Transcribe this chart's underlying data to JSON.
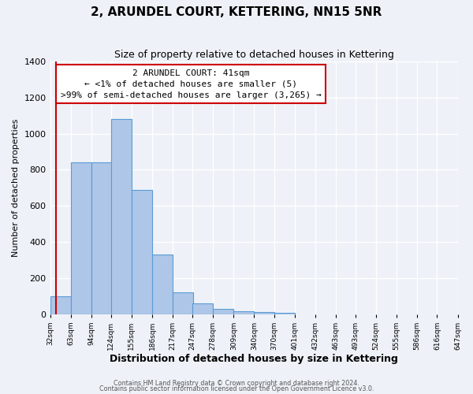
{
  "title": "2, ARUNDEL COURT, KETTERING, NN15 5NR",
  "subtitle": "Size of property relative to detached houses in Kettering",
  "xlabel": "Distribution of detached houses by size in Kettering",
  "ylabel": "Number of detached properties",
  "bar_values": [
    100,
    840,
    840,
    1080,
    690,
    330,
    120,
    60,
    28,
    15,
    10,
    8
  ],
  "bin_edges": [
    32,
    63,
    94,
    124,
    155,
    186,
    217,
    247,
    278,
    309,
    340,
    370,
    401
  ],
  "tick_labels": [
    "32sqm",
    "63sqm",
    "94sqm",
    "124sqm",
    "155sqm",
    "186sqm",
    "217sqm",
    "247sqm",
    "278sqm",
    "309sqm",
    "340sqm",
    "370sqm",
    "401sqm",
    "432sqm",
    "463sqm",
    "493sqm",
    "524sqm",
    "555sqm",
    "586sqm",
    "616sqm",
    "647sqm"
  ],
  "all_bin_edges": [
    32,
    63,
    94,
    124,
    155,
    186,
    217,
    247,
    278,
    309,
    340,
    370,
    401,
    432,
    463,
    493,
    524,
    555,
    586,
    616,
    647
  ],
  "bar_color": "#aec6e8",
  "bar_edge_color": "#5b9bd5",
  "highlight_x": 41,
  "ylim": [
    0,
    1400
  ],
  "yticks": [
    0,
    200,
    400,
    600,
    800,
    1000,
    1200,
    1400
  ],
  "annotation_line1": "2 ARUNDEL COURT: 41sqm",
  "annotation_line2": "← <1% of detached houses are smaller (5)",
  "annotation_line3": ">99% of semi-detached houses are larger (3,265) →",
  "annotation_box_color": "#ffffff",
  "annotation_box_edge": "#cc0000",
  "red_line_color": "#cc0000",
  "footnote1": "Contains HM Land Registry data © Crown copyright and database right 2024.",
  "footnote2": "Contains public sector information licensed under the Open Government Licence v3.0.",
  "background_color": "#eef2f8",
  "grid_color": "#ffffff",
  "xlim_min": 32,
  "xlim_max": 647
}
